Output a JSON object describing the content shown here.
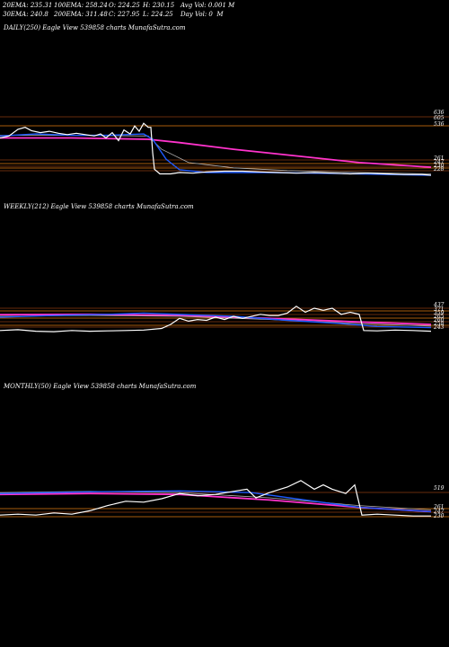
{
  "header": {
    "row1": [
      "20EMA: 235.31",
      "100EMA: 258.24",
      "O: 224.25",
      "H: 230.15",
      "Avg Vol: 0.001 M"
    ],
    "row2": [
      "30EMA: 240.8",
      "200EMA: 311.48",
      "C: 227.95",
      "L: 224.25",
      "Day Vol: 0  M"
    ]
  },
  "colors": {
    "background": "#000000",
    "price": "#ffffff",
    "ema_short": "#1e5bff",
    "ema_mid": "#b0b0b0",
    "ema_long": "#ff33cc",
    "level_lines": "#e07a10",
    "level_lines_dark": "#8a3a10"
  },
  "chart_data": [
    {
      "type": "line",
      "label": "DAILY(250) Eagle   View  539858 charts MunafaSutra.com",
      "right_labels": [
        "636",
        "605",
        "536",
        "261",
        "247",
        "230",
        "228"
      ],
      "series": [
        {
          "name": "price",
          "points": [
            [
              0,
              0.48
            ],
            [
              10,
              0.45
            ],
            [
              20,
              0.35
            ],
            [
              28,
              0.32
            ],
            [
              35,
              0.37
            ],
            [
              45,
              0.4
            ],
            [
              55,
              0.38
            ],
            [
              65,
              0.41
            ],
            [
              75,
              0.43
            ],
            [
              85,
              0.41
            ],
            [
              95,
              0.43
            ],
            [
              105,
              0.45
            ],
            [
              112,
              0.42
            ],
            [
              118,
              0.48
            ],
            [
              125,
              0.4
            ],
            [
              132,
              0.52
            ],
            [
              138,
              0.36
            ],
            [
              145,
              0.42
            ],
            [
              150,
              0.3
            ],
            [
              155,
              0.38
            ],
            [
              160,
              0.26
            ],
            [
              165,
              0.32
            ],
            [
              168,
              0.32
            ],
            [
              170,
              0.7
            ],
            [
              172,
              0.95
            ],
            [
              178,
              1.02
            ],
            [
              190,
              1.02
            ],
            [
              200,
              1.0
            ],
            [
              215,
              1.01
            ],
            [
              230,
              0.99
            ],
            [
              250,
              0.98
            ],
            [
              270,
              0.98
            ],
            [
              290,
              0.99
            ],
            [
              310,
              1.0
            ],
            [
              330,
              1.01
            ],
            [
              350,
              1.0
            ],
            [
              370,
              1.01
            ],
            [
              390,
              1.02
            ],
            [
              410,
              1.01
            ],
            [
              430,
              1.02
            ],
            [
              450,
              1.03
            ],
            [
              470,
              1.03
            ],
            [
              480,
              1.04
            ]
          ]
        },
        {
          "name": "ema_short",
          "points": [
            [
              0,
              0.45
            ],
            [
              40,
              0.42
            ],
            [
              80,
              0.44
            ],
            [
              120,
              0.44
            ],
            [
              160,
              0.42
            ],
            [
              170,
              0.5
            ],
            [
              185,
              0.8
            ],
            [
              200,
              0.96
            ],
            [
              230,
              1.0
            ],
            [
              300,
              1.0
            ],
            [
              400,
              1.02
            ],
            [
              480,
              1.04
            ]
          ]
        },
        {
          "name": "ema_mid",
          "points": [
            [
              0,
              0.44
            ],
            [
              80,
              0.44
            ],
            [
              165,
              0.45
            ],
            [
              180,
              0.65
            ],
            [
              210,
              0.85
            ],
            [
              260,
              0.93
            ],
            [
              320,
              0.97
            ],
            [
              400,
              1.0
            ],
            [
              480,
              1.02
            ]
          ]
        },
        {
          "name": "ema_long",
          "points": [
            [
              0,
              0.48
            ],
            [
              80,
              0.48
            ],
            [
              165,
              0.5
            ],
            [
              200,
              0.55
            ],
            [
              260,
              0.65
            ],
            [
              330,
              0.75
            ],
            [
              400,
              0.85
            ],
            [
              480,
              0.92
            ]
          ]
        }
      ]
    },
    {
      "type": "line",
      "label": "WEEKLY(212) Eagle   View  539858 charts MunafaSutra.com",
      "right_labels": [
        "437",
        "371",
        "359",
        "265",
        "260",
        "258",
        "243"
      ],
      "series": [
        {
          "name": "price",
          "points": [
            [
              0,
              0.95
            ],
            [
              20,
              0.93
            ],
            [
              40,
              0.97
            ],
            [
              60,
              0.98
            ],
            [
              80,
              0.95
            ],
            [
              100,
              0.97
            ],
            [
              120,
              0.96
            ],
            [
              140,
              0.95
            ],
            [
              160,
              0.94
            ],
            [
              180,
              0.9
            ],
            [
              190,
              0.8
            ],
            [
              200,
              0.65
            ],
            [
              210,
              0.72
            ],
            [
              220,
              0.68
            ],
            [
              230,
              0.7
            ],
            [
              240,
              0.62
            ],
            [
              250,
              0.68
            ],
            [
              260,
              0.6
            ],
            [
              270,
              0.65
            ],
            [
              290,
              0.55
            ],
            [
              300,
              0.58
            ],
            [
              310,
              0.58
            ],
            [
              320,
              0.52
            ],
            [
              330,
              0.35
            ],
            [
              340,
              0.5
            ],
            [
              350,
              0.4
            ],
            [
              360,
              0.45
            ],
            [
              370,
              0.4
            ],
            [
              380,
              0.55
            ],
            [
              390,
              0.5
            ],
            [
              400,
              0.55
            ],
            [
              405,
              0.95
            ],
            [
              420,
              0.96
            ],
            [
              440,
              0.94
            ],
            [
              460,
              0.95
            ],
            [
              480,
              0.97
            ]
          ]
        },
        {
          "name": "ema_short",
          "points": [
            [
              0,
              0.62
            ],
            [
              60,
              0.58
            ],
            [
              120,
              0.55
            ],
            [
              160,
              0.52
            ],
            [
              200,
              0.55
            ],
            [
              260,
              0.6
            ],
            [
              320,
              0.7
            ],
            [
              380,
              0.78
            ],
            [
              420,
              0.85
            ],
            [
              480,
              0.88
            ]
          ]
        },
        {
          "name": "ema_mid",
          "points": [
            [
              0,
              0.6
            ],
            [
              100,
              0.58
            ],
            [
              200,
              0.6
            ],
            [
              300,
              0.68
            ],
            [
              400,
              0.78
            ],
            [
              480,
              0.84
            ]
          ]
        },
        {
          "name": "ema_long",
          "points": [
            [
              0,
              0.56
            ],
            [
              100,
              0.55
            ],
            [
              200,
              0.58
            ],
            [
              300,
              0.65
            ],
            [
              400,
              0.74
            ],
            [
              480,
              0.8
            ]
          ]
        }
      ]
    },
    {
      "type": "line",
      "label": "MONTHLY(50) Eagle   View  539858 charts MunafaSutra.com",
      "right_labels": [
        "519",
        "261",
        "247",
        "230"
      ],
      "series": [
        {
          "name": "price",
          "points": [
            [
              0,
              0.9
            ],
            [
              20,
              0.88
            ],
            [
              40,
              0.9
            ],
            [
              60,
              0.85
            ],
            [
              80,
              0.88
            ],
            [
              100,
              0.8
            ],
            [
              120,
              0.68
            ],
            [
              140,
              0.58
            ],
            [
              160,
              0.6
            ],
            [
              180,
              0.52
            ],
            [
              200,
              0.4
            ],
            [
              220,
              0.45
            ],
            [
              240,
              0.42
            ],
            [
              260,
              0.35
            ],
            [
              275,
              0.3
            ],
            [
              285,
              0.5
            ],
            [
              300,
              0.38
            ],
            [
              320,
              0.25
            ],
            [
              335,
              0.1
            ],
            [
              350,
              0.3
            ],
            [
              360,
              0.2
            ],
            [
              370,
              0.3
            ],
            [
              385,
              0.4
            ],
            [
              395,
              0.2
            ],
            [
              403,
              0.9
            ],
            [
              420,
              0.88
            ],
            [
              440,
              0.9
            ],
            [
              460,
              0.92
            ],
            [
              480,
              0.92
            ]
          ]
        },
        {
          "name": "ema_short",
          "points": [
            [
              0,
              0.4
            ],
            [
              100,
              0.36
            ],
            [
              200,
              0.34
            ],
            [
              280,
              0.38
            ],
            [
              340,
              0.55
            ],
            [
              400,
              0.72
            ],
            [
              480,
              0.82
            ]
          ]
        },
        {
          "name": "ema_mid",
          "points": [
            [
              0,
              0.38
            ],
            [
              100,
              0.35
            ],
            [
              200,
              0.38
            ],
            [
              300,
              0.5
            ],
            [
              400,
              0.68
            ],
            [
              480,
              0.78
            ]
          ]
        },
        {
          "name": "ema_long",
          "points": [
            [
              0,
              0.42
            ],
            [
              100,
              0.4
            ],
            [
              200,
              0.42
            ],
            [
              300,
              0.55
            ],
            [
              400,
              0.72
            ],
            [
              480,
              0.82
            ]
          ]
        }
      ]
    }
  ]
}
